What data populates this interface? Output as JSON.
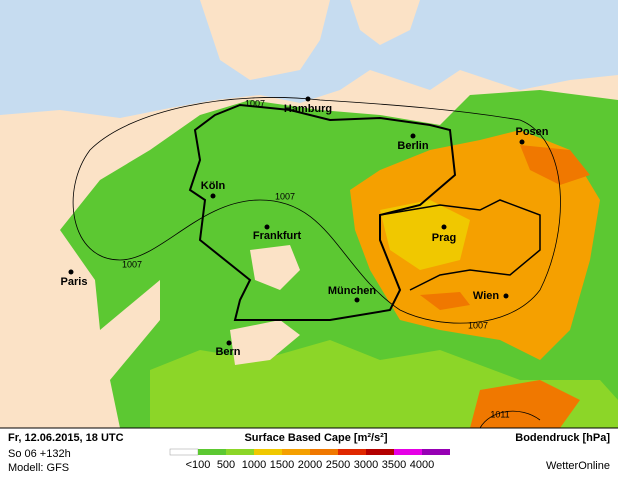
{
  "map": {
    "cities": [
      "Hamburg",
      "Berlin",
      "Posen",
      "Köln",
      "Frankfurt",
      "Prag",
      "Paris",
      "München",
      "Wien",
      "Bern"
    ],
    "isobars": [
      "1007",
      "1007",
      "1007",
      "1007",
      "1011"
    ]
  },
  "footer": {
    "datetime": "Fr, 12.06.2015, 18 UTC",
    "lead": "So 06 +132h",
    "model": "Modell: GFS",
    "title": "Surface Based Cape [m²/s²]",
    "unit_title": "Bodendruck [hPa]",
    "brand": "WetterOnline"
  },
  "legend": {
    "labels": [
      "<100",
      "500",
      "1000",
      "1500",
      "2000",
      "2500",
      "3000",
      "3500",
      "4000"
    ],
    "colors": [
      "#ffffff",
      "#5cc832",
      "#8cd628",
      "#f0c800",
      "#f5a000",
      "#f07800",
      "#e02800",
      "#b40000",
      "#e600e6",
      "#9600b4"
    ]
  }
}
